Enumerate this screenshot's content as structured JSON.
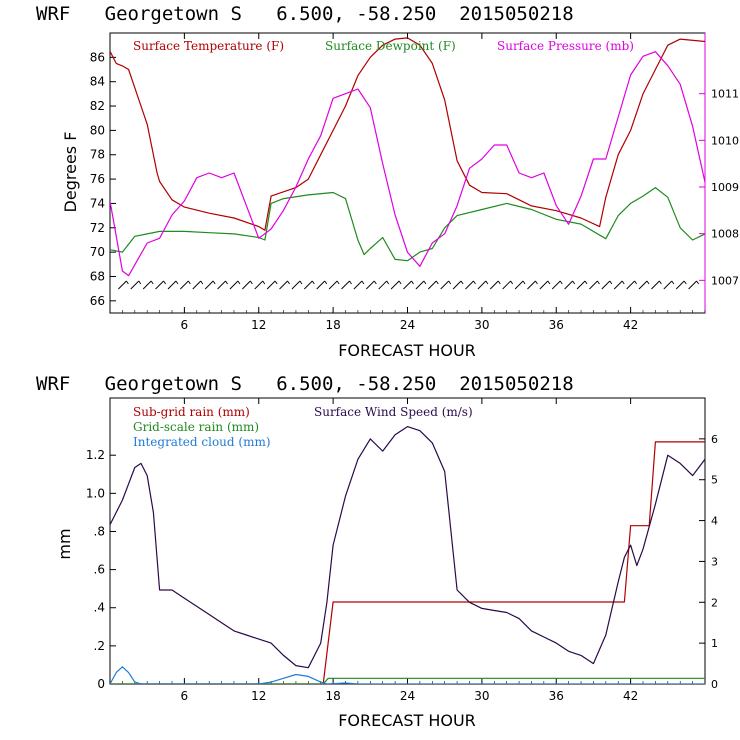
{
  "panels": [
    {
      "title": "WRF   Georgetown S   6.500, -58.250  2015050218",
      "chart_data": {
        "type": "line",
        "xlabel": "FORECAST HOUR",
        "ylabel": "Degrees F",
        "xlim": [
          0,
          48
        ],
        "ylim": [
          65,
          88
        ],
        "y2lim": [
          1006.3,
          1012.3
        ],
        "x_ticks": [
          6,
          12,
          18,
          24,
          30,
          36,
          42
        ],
        "y_ticks": [
          66,
          68,
          70,
          72,
          74,
          76,
          78,
          80,
          82,
          84,
          86
        ],
        "y2_ticks": [
          1007,
          1008,
          1009,
          1010,
          1011
        ],
        "legend": "top-left, inside",
        "series": [
          {
            "name": "Surface Temperature (F)",
            "color": "#b00000",
            "axis": "left",
            "points": [
              [
                0,
                86.5
              ],
              [
                0.5,
                85.5
              ],
              [
                1,
                85.3
              ],
              [
                1.5,
                85.0
              ],
              [
                2,
                83.5
              ],
              [
                3,
                80.5
              ],
              [
                3.5,
                78
              ],
              [
                3.8,
                76.5
              ],
              [
                4,
                75.8
              ],
              [
                5,
                74.3
              ],
              [
                6,
                73.7
              ],
              [
                8,
                73.2
              ],
              [
                10,
                72.8
              ],
              [
                12,
                72.1
              ],
              [
                12.5,
                71.8
              ],
              [
                13,
                74.6
              ],
              [
                15,
                75.3
              ],
              [
                16,
                76
              ],
              [
                17,
                78
              ],
              [
                18,
                80
              ],
              [
                19,
                82
              ],
              [
                20,
                84.5
              ],
              [
                21,
                86
              ],
              [
                22,
                87
              ],
              [
                23,
                87.5
              ],
              [
                24,
                87.6
              ],
              [
                25,
                87
              ],
              [
                26,
                85.5
              ],
              [
                27,
                82.5
              ],
              [
                28,
                77.5
              ],
              [
                29,
                75.5
              ],
              [
                30,
                74.9
              ],
              [
                32,
                74.8
              ],
              [
                34,
                73.8
              ],
              [
                36,
                73.4
              ],
              [
                38,
                72.8
              ],
              [
                39.5,
                72.1
              ],
              [
                40,
                74.5
              ],
              [
                41,
                78
              ],
              [
                42,
                80
              ],
              [
                43,
                83
              ],
              [
                44,
                85
              ],
              [
                45,
                87
              ],
              [
                46,
                87.5
              ],
              [
                48,
                87.3
              ]
            ]
          },
          {
            "name": "Surface Dewpoint (F)",
            "color": "#1f8a1f",
            "axis": "left",
            "points": [
              [
                0,
                70.2
              ],
              [
                1,
                70
              ],
              [
                2,
                71.3
              ],
              [
                3,
                71.5
              ],
              [
                4,
                71.7
              ],
              [
                6,
                71.7
              ],
              [
                8,
                71.6
              ],
              [
                10,
                71.5
              ],
              [
                12,
                71.2
              ],
              [
                12.5,
                71.0
              ],
              [
                13,
                74
              ],
              [
                14,
                74.4
              ],
              [
                16,
                74.7
              ],
              [
                18,
                74.9
              ],
              [
                19,
                74.4
              ],
              [
                20,
                71
              ],
              [
                20.5,
                69.8
              ],
              [
                21,
                70.3
              ],
              [
                22,
                71.2
              ],
              [
                23,
                69.4
              ],
              [
                24,
                69.3
              ],
              [
                25,
                70
              ],
              [
                26,
                70.3
              ],
              [
                27,
                72
              ],
              [
                28,
                73
              ],
              [
                30,
                73.5
              ],
              [
                32,
                74
              ],
              [
                34,
                73.5
              ],
              [
                36,
                72.7
              ],
              [
                38,
                72.3
              ],
              [
                40,
                71.1
              ],
              [
                41,
                73
              ],
              [
                42,
                74
              ],
              [
                43,
                74.6
              ],
              [
                44,
                75.3
              ],
              [
                45,
                74.5
              ],
              [
                46,
                72
              ],
              [
                47,
                71
              ],
              [
                48,
                71.5
              ]
            ]
          },
          {
            "name": "Surface Pressure (mb)",
            "color": "#e000e0",
            "axis": "right",
            "points": [
              [
                0,
                1008.7
              ],
              [
                1,
                1007.2
              ],
              [
                1.5,
                1007.1
              ],
              [
                3,
                1007.8
              ],
              [
                4,
                1007.9
              ],
              [
                5,
                1008.4
              ],
              [
                6,
                1008.7
              ],
              [
                7,
                1009.2
              ],
              [
                8,
                1009.3
              ],
              [
                9,
                1009.2
              ],
              [
                10,
                1009.3
              ],
              [
                11,
                1008.6
              ],
              [
                12,
                1007.9
              ],
              [
                13,
                1008.1
              ],
              [
                14,
                1008.5
              ],
              [
                15,
                1009.0
              ],
              [
                16,
                1009.6
              ],
              [
                17,
                1010.1
              ],
              [
                18,
                1010.9
              ],
              [
                19,
                1011.0
              ],
              [
                20,
                1011.1
              ],
              [
                21,
                1010.7
              ],
              [
                22,
                1009.5
              ],
              [
                23,
                1008.4
              ],
              [
                24,
                1007.6
              ],
              [
                25,
                1007.3
              ],
              [
                26,
                1007.8
              ],
              [
                27,
                1008.0
              ],
              [
                28,
                1008.6
              ],
              [
                29,
                1009.4
              ],
              [
                30,
                1009.6
              ],
              [
                31,
                1009.9
              ],
              [
                32,
                1009.9
              ],
              [
                33,
                1009.3
              ],
              [
                34,
                1009.2
              ],
              [
                35,
                1009.3
              ],
              [
                36,
                1008.6
              ],
              [
                37,
                1008.2
              ],
              [
                38,
                1008.8
              ],
              [
                39,
                1009.6
              ],
              [
                40,
                1009.6
              ],
              [
                41,
                1010.5
              ],
              [
                42,
                1011.4
              ],
              [
                43,
                1011.8
              ],
              [
                44,
                1011.9
              ],
              [
                45,
                1011.6
              ],
              [
                46,
                1011.2
              ],
              [
                47,
                1010.3
              ],
              [
                48,
                1009.1
              ]
            ]
          }
        ],
        "wind_barbs": "hourly wind barbs along the bottom of the panel"
      }
    },
    {
      "title": "WRF   Georgetown S   6.500, -58.250  2015050218",
      "chart_data": {
        "type": "line",
        "xlabel": "FORECAST HOUR",
        "ylabel": "mm",
        "xlim": [
          0,
          48
        ],
        "ylim": [
          0,
          1.5
        ],
        "y2lim": [
          0,
          7
        ],
        "x_ticks": [
          6,
          12,
          18,
          24,
          30,
          36,
          42
        ],
        "y_tick_labels": [
          "0",
          ".2",
          ".4",
          ".6",
          ".8",
          "1.0",
          "1.2"
        ],
        "y_ticks": [
          0,
          0.2,
          0.4,
          0.6,
          0.8,
          1.0,
          1.2
        ],
        "y2_ticks": [
          0,
          1,
          2,
          3,
          4,
          5,
          6
        ],
        "legend": "top-left, inside",
        "series": [
          {
            "name": "Sub-grid rain (mm)",
            "color": "#b00000",
            "axis": "left",
            "step": true,
            "points": [
              [
                0,
                0
              ],
              [
                17.2,
                0
              ],
              [
                18,
                0.43
              ],
              [
                41.5,
                0.43
              ],
              [
                42,
                0.83
              ],
              [
                43.5,
                0.83
              ],
              [
                44,
                1.27
              ],
              [
                48,
                1.27
              ]
            ]
          },
          {
            "name": "Grid-scale rain (mm)",
            "color": "#1f8a1f",
            "axis": "left",
            "points": [
              [
                0,
                0
              ],
              [
                17.2,
                0
              ],
              [
                17.6,
                0.03
              ],
              [
                48,
                0.03
              ]
            ]
          },
          {
            "name": "Integrated cloud (mm)",
            "color": "#1e7bd6",
            "axis": "left",
            "points": [
              [
                0,
                0
              ],
              [
                0.5,
                0.06
              ],
              [
                1,
                0.09
              ],
              [
                1.5,
                0.06
              ],
              [
                2,
                0.01
              ],
              [
                2.5,
                0
              ],
              [
                12,
                0
              ],
              [
                13,
                0.01
              ],
              [
                14,
                0.03
              ],
              [
                15,
                0.05
              ],
              [
                16,
                0.04
              ],
              [
                17,
                0.01
              ],
              [
                17.5,
                0
              ],
              [
                19,
                0.005
              ],
              [
                20,
                0
              ],
              [
                48,
                0
              ]
            ]
          },
          {
            "name": "Surface Wind Speed (m/s)",
            "color": "#2a0a4a",
            "axis": "right",
            "points": [
              [
                0,
                3.9
              ],
              [
                1,
                4.5
              ],
              [
                2,
                5.3
              ],
              [
                2.5,
                5.4
              ],
              [
                3,
                5.1
              ],
              [
                3.5,
                4.2
              ],
              [
                4,
                2.3
              ],
              [
                5,
                2.3
              ],
              [
                6,
                2.1
              ],
              [
                7,
                1.9
              ],
              [
                8,
                1.7
              ],
              [
                9,
                1.5
              ],
              [
                10,
                1.3
              ],
              [
                11,
                1.2
              ],
              [
                12,
                1.1
              ],
              [
                13,
                1.0
              ],
              [
                14,
                0.7
              ],
              [
                15,
                0.45
              ],
              [
                16,
                0.4
              ],
              [
                17,
                1.0
              ],
              [
                17.5,
                2.0
              ],
              [
                18,
                3.4
              ],
              [
                19,
                4.6
              ],
              [
                20,
                5.5
              ],
              [
                21,
                6.0
              ],
              [
                22,
                5.7
              ],
              [
                23,
                6.1
              ],
              [
                24,
                6.3
              ],
              [
                25,
                6.2
              ],
              [
                26,
                5.9
              ],
              [
                27,
                5.2
              ],
              [
                28,
                2.3
              ],
              [
                29,
                2.0
              ],
              [
                30,
                1.85
              ],
              [
                31,
                1.8
              ],
              [
                32,
                1.75
              ],
              [
                33,
                1.6
              ],
              [
                34,
                1.3
              ],
              [
                35,
                1.15
              ],
              [
                36,
                1.0
              ],
              [
                37,
                0.8
              ],
              [
                38,
                0.7
              ],
              [
                39,
                0.5
              ],
              [
                40,
                1.2
              ],
              [
                41,
                2.5
              ],
              [
                41.5,
                3.1
              ],
              [
                42,
                3.4
              ],
              [
                42.5,
                2.9
              ],
              [
                43,
                3.3
              ],
              [
                44,
                4.4
              ],
              [
                45,
                5.6
              ],
              [
                46,
                5.4
              ],
              [
                47,
                5.1
              ],
              [
                48,
                5.5
              ]
            ]
          }
        ]
      }
    }
  ]
}
